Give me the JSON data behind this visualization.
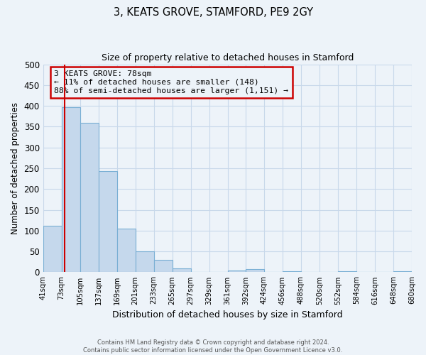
{
  "title": "3, KEATS GROVE, STAMFORD, PE9 2GY",
  "subtitle": "Size of property relative to detached houses in Stamford",
  "xlabel": "Distribution of detached houses by size in Stamford",
  "ylabel": "Number of detached properties",
  "bin_edges": [
    41,
    73,
    105,
    137,
    169,
    201,
    233,
    265,
    297,
    329,
    361,
    392,
    424,
    456,
    488,
    520,
    552,
    584,
    616,
    648,
    680
  ],
  "bar_heights": [
    112,
    396,
    360,
    243,
    105,
    50,
    30,
    10,
    0,
    0,
    5,
    8,
    0,
    2,
    0,
    0,
    2,
    0,
    0,
    2
  ],
  "bar_color": "#c5d8ec",
  "bar_edgecolor": "#7aafd4",
  "property_line_x": 78,
  "property_line_color": "#cc0000",
  "ylim": [
    0,
    500
  ],
  "yticks": [
    0,
    50,
    100,
    150,
    200,
    250,
    300,
    350,
    400,
    450,
    500
  ],
  "xtick_labels": [
    "41sqm",
    "73sqm",
    "105sqm",
    "137sqm",
    "169sqm",
    "201sqm",
    "233sqm",
    "265sqm",
    "297sqm",
    "329sqm",
    "361sqm",
    "392sqm",
    "424sqm",
    "456sqm",
    "488sqm",
    "520sqm",
    "552sqm",
    "584sqm",
    "616sqm",
    "648sqm",
    "680sqm"
  ],
  "annotation_title": "3 KEATS GROVE: 78sqm",
  "annotation_line1": "← 11% of detached houses are smaller (148)",
  "annotation_line2": "88% of semi-detached houses are larger (1,151) →",
  "annotation_box_color": "#cc0000",
  "grid_color": "#c8d8ea",
  "background_color": "#edf3f9",
  "footer_line1": "Contains HM Land Registry data © Crown copyright and database right 2024.",
  "footer_line2": "Contains public sector information licensed under the Open Government Licence v3.0."
}
